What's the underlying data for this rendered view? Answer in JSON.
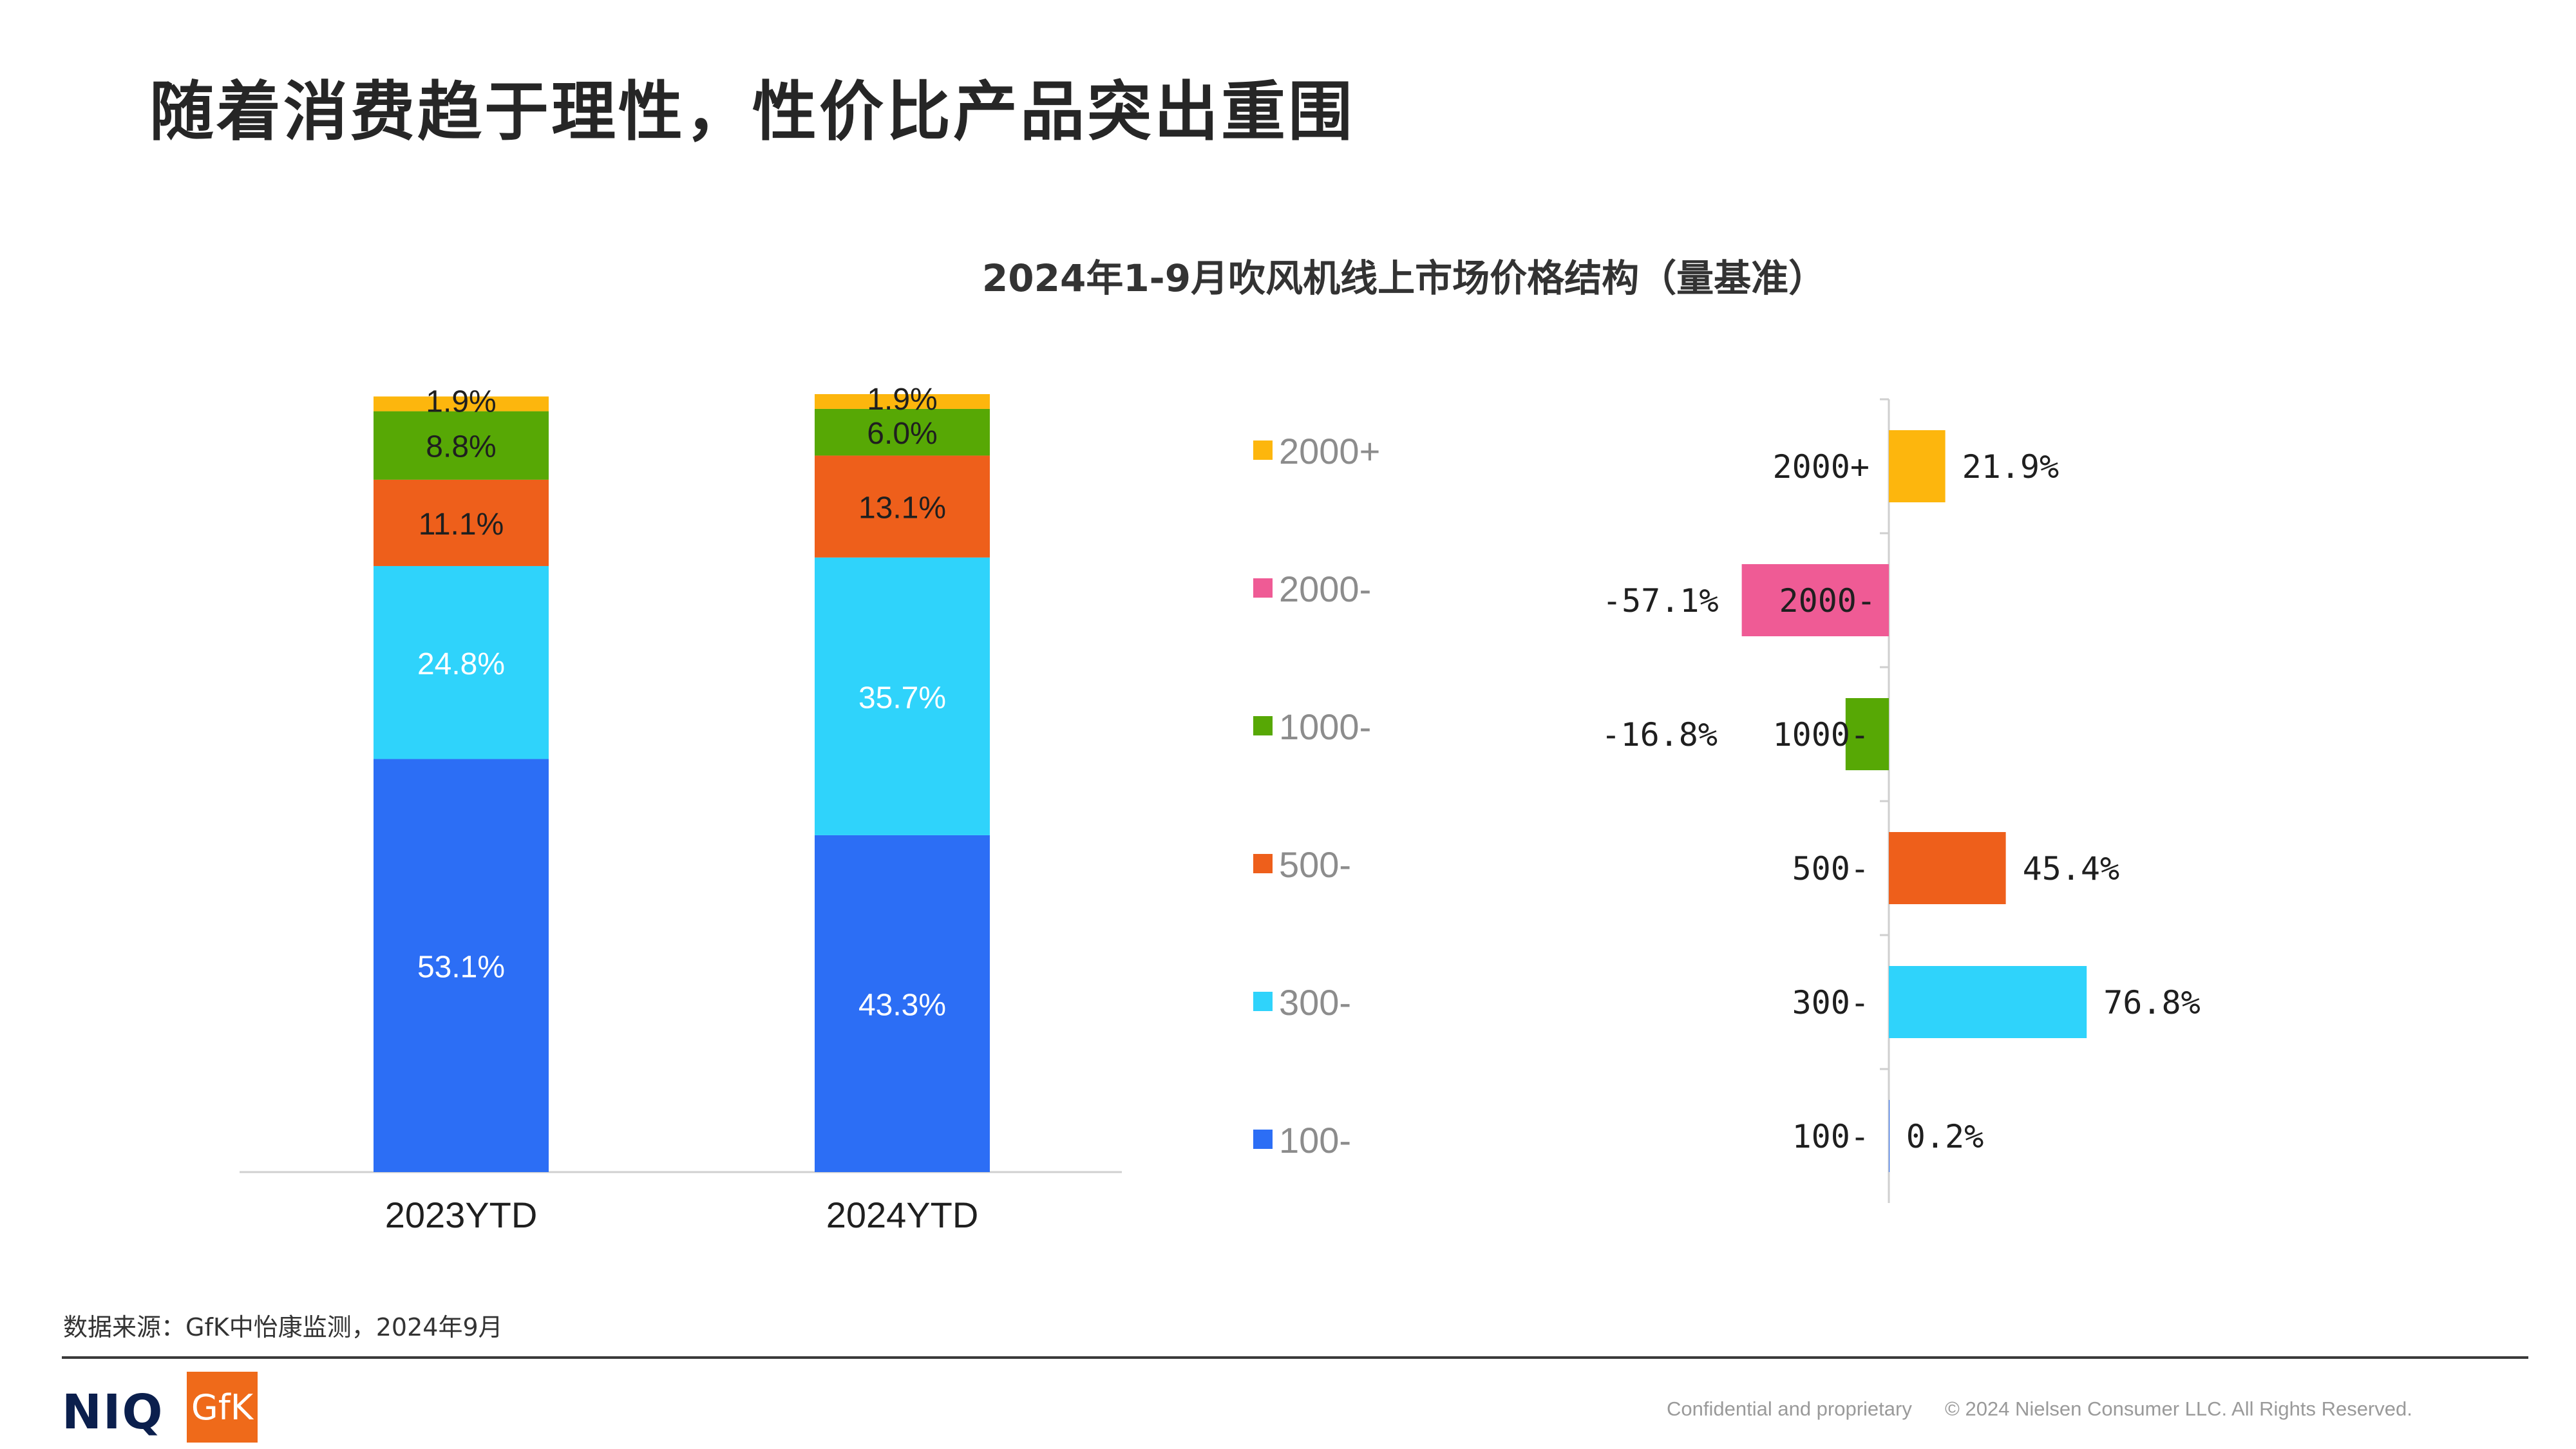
{
  "page": {
    "title": "随着消费趋于理性，性价比产品突出重围",
    "source": "数据来源：GfK中怡康监测，2024年9月",
    "footer": {
      "confidential": "Confidential and proprietary",
      "copyright": "© 2024 Nielsen Consumer LLC. All Rights Reserved.",
      "logo_niq": "NIQ",
      "logo_gfk": "GfK"
    }
  },
  "chart_data": [
    {
      "type": "bar",
      "stacked": true,
      "title": "2024年1-9月吹风机线上市场价格结构（量基准）",
      "categories": [
        "2023YTD",
        "2024YTD"
      ],
      "unit": "%",
      "ylim": [
        0,
        100
      ],
      "series": [
        {
          "name": "100-",
          "color": "#2c6ef5",
          "label_color": "#ffffff",
          "values": [
            53.1,
            43.3
          ],
          "labels": [
            "53.1%",
            "43.3%"
          ]
        },
        {
          "name": "300-",
          "color": "#2fd3fb",
          "label_color": "#ffffff",
          "values": [
            24.8,
            35.7
          ],
          "labels": [
            "24.8%",
            "35.7%"
          ]
        },
        {
          "name": "500-",
          "color": "#ee5f1b",
          "label_color": "#1f1f1f",
          "values": [
            11.1,
            13.1
          ],
          "labels": [
            "11.1%",
            "13.1%"
          ]
        },
        {
          "name": "1000-",
          "color": "#57a805",
          "label_color": "#1f1f1f",
          "values": [
            8.8,
            6.0
          ],
          "labels": [
            "8.8%",
            "6.0%"
          ]
        },
        {
          "name": "2000-",
          "color": "#ef5b95",
          "label_color": "#1f1f1f",
          "values": [
            0,
            0
          ],
          "labels": [
            "",
            ""
          ]
        },
        {
          "name": "2000+",
          "color": "#fdb60d",
          "label_color": "#1f1f1f",
          "values": [
            1.9,
            1.9
          ],
          "labels": [
            "1.9%",
            "1.9%"
          ]
        }
      ],
      "legend": [
        "2000+",
        "2000-",
        "1000-",
        "500-",
        "300-",
        "100-"
      ]
    },
    {
      "type": "bar",
      "orientation": "horizontal",
      "title": "",
      "categories": [
        "2000+",
        "2000-",
        "1000-",
        "500-",
        "300-",
        "100-"
      ],
      "values": [
        21.9,
        -57.1,
        -16.8,
        45.4,
        76.8,
        0.2
      ],
      "labels": [
        "21.9%",
        "-57.1%",
        "-16.8%",
        "45.4%",
        "76.8%",
        "0.2%"
      ],
      "colors": [
        "#fdb60d",
        "#ef5b95",
        "#57a805",
        "#ee5f1b",
        "#2fd3fb",
        "#2c6ef5"
      ],
      "xlim": [
        -60,
        80
      ]
    }
  ]
}
